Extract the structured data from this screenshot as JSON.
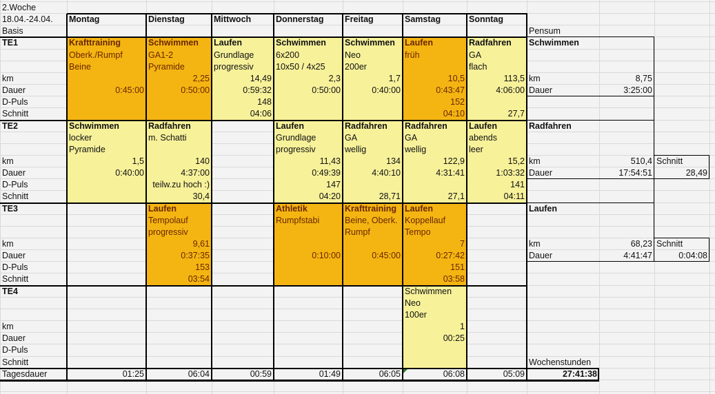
{
  "sheet": {
    "week": "2.Woche",
    "date_range": "18.04.-24.04.",
    "phase": "Basis",
    "days": [
      "Montag",
      "Dienstag",
      "Mittwoch",
      "Donnerstag",
      "Freitag",
      "Samstag",
      "Sonntag"
    ],
    "row_labels": [
      "km",
      "Dauer",
      "D-Puls",
      "Schnitt"
    ],
    "colors": {
      "intense": "#f4b512",
      "easy": "#f7f19a",
      "intense_text": "#6a2600"
    },
    "blocks": [
      {
        "label": "TE1",
        "sessions": [
          {
            "day": 0,
            "type": "intense",
            "sport": "Krafttraining",
            "l1": "Oberk./Rumpf",
            "l2": "Beine",
            "km": "",
            "dauer": "0:45:00",
            "puls": "",
            "schnitt": ""
          },
          {
            "day": 1,
            "type": "intense",
            "sport": "Schwimmen",
            "l1": "GA1-2",
            "l2": "Pyramide",
            "km": "2,25",
            "dauer": "0:50:00",
            "puls": "",
            "schnitt": ""
          },
          {
            "day": 2,
            "type": "easy",
            "sport": "Laufen",
            "l1": "Grundlage",
            "l2": "progressiv",
            "km": "14,49",
            "dauer": "0:59:32",
            "puls": "148",
            "schnitt": "04:06"
          },
          {
            "day": 3,
            "type": "easy",
            "sport": "Schwimmen",
            "l1": "6x200",
            "l2": "10x50 / 4x25",
            "km": "2,3",
            "dauer": "0:50:00",
            "puls": "",
            "schnitt": ""
          },
          {
            "day": 4,
            "type": "easy",
            "sport": "Schwimmen",
            "l1": "Neo",
            "l2": "200er",
            "km": "1,7",
            "dauer": "0:40:00",
            "puls": "",
            "schnitt": ""
          },
          {
            "day": 5,
            "type": "intense",
            "sport": "Laufen",
            "l1": "früh",
            "l2": "",
            "km": "10,5",
            "dauer": "0:43:47",
            "puls": "152",
            "schnitt": "04:10"
          },
          {
            "day": 6,
            "type": "easy",
            "sport": "Radfahren",
            "l1": "GA",
            "l2": "flach",
            "km": "113,5",
            "dauer": "4:06:00",
            "puls": "",
            "schnitt": "27,7"
          }
        ]
      },
      {
        "label": "TE2",
        "sessions": [
          {
            "day": 0,
            "type": "easy",
            "sport": "Schwimmen",
            "l1": "locker",
            "l2": "Pyramide",
            "km": "1,5",
            "dauer": "0:40:00",
            "puls": "",
            "schnitt": ""
          },
          {
            "day": 1,
            "type": "easy",
            "sport": "Radfahren",
            "l1": "m. Schatti",
            "l2": "",
            "km": "140",
            "dauer": "4:37:00",
            "puls": "teilw.zu hoch :)",
            "schnitt": "30,4"
          },
          {
            "day": 3,
            "type": "easy",
            "sport": "Laufen",
            "l1": "Grundlage",
            "l2": "progressiv",
            "km": "11,43",
            "dauer": "0:49:39",
            "puls": "147",
            "schnitt": "04:20"
          },
          {
            "day": 4,
            "type": "easy",
            "sport": "Radfahren",
            "l1": "GA",
            "l2": "wellig",
            "km": "134",
            "dauer": "4:40:10",
            "puls": "",
            "schnitt": "28,71"
          },
          {
            "day": 5,
            "type": "easy",
            "sport": "Radfahren",
            "l1": "GA",
            "l2": "wellig",
            "km": "122,9",
            "dauer": "4:31:41",
            "puls": "",
            "schnitt": "27,1"
          },
          {
            "day": 6,
            "type": "easy",
            "sport": "Laufen",
            "l1": "abends",
            "l2": "leer",
            "km": "15,2",
            "dauer": "1:03:32",
            "puls": "141",
            "schnitt": "04:11"
          }
        ]
      },
      {
        "label": "TE3",
        "sessions": [
          {
            "day": 1,
            "type": "intense",
            "sport": "Laufen",
            "l1": "Tempolauf",
            "l2": "progressiv",
            "km": "9,61",
            "dauer": "0:37:35",
            "puls": "153",
            "schnitt": "03:54"
          },
          {
            "day": 3,
            "type": "intense",
            "sport": "Athletik",
            "l1": "Rumpfstabi",
            "l2": "",
            "km": "",
            "dauer": "0:10:00",
            "puls": "",
            "schnitt": ""
          },
          {
            "day": 4,
            "type": "intense",
            "sport": "Krafttraining",
            "l1": "Beine, Oberk.",
            "l2": "Rumpf",
            "km": "",
            "dauer": "0:45:00",
            "puls": "",
            "schnitt": ""
          },
          {
            "day": 5,
            "type": "intense",
            "sport": "Laufen",
            "l1": "Koppellauf",
            "l2": "Tempo",
            "km": "7",
            "dauer": "0:27:42",
            "puls": "151",
            "schnitt": "03:58"
          }
        ]
      },
      {
        "label": "TE4",
        "sessions": [
          {
            "day": 5,
            "type": "easy",
            "plain": true,
            "sport": "Schwimmen",
            "l1": "Neo",
            "l2": "100er",
            "km": "1",
            "dauer": "00:25",
            "puls": "",
            "schnitt": ""
          }
        ]
      }
    ],
    "daily_total_label": "Tagesdauer",
    "daily_totals": [
      "01:25",
      "06:04",
      "00:59",
      "01:49",
      "06:05",
      "06:08",
      "05:09"
    ]
  },
  "pensum": {
    "title": "Pensum",
    "km_label": "km",
    "dauer_label": "Dauer",
    "schnitt_label": "Schnitt",
    "sports": [
      {
        "name": "Schwimmen",
        "km": "8,75",
        "dauer": "3:25:00",
        "schnitt": ""
      },
      {
        "name": "Radfahren",
        "km": "510,4",
        "dauer": "17:54:51",
        "schnitt": "28,49"
      },
      {
        "name": "Laufen",
        "km": "68,23",
        "dauer": "4:41:47",
        "schnitt": "0:04:08"
      }
    ],
    "week_hours_label": "Wochenstunden",
    "week_hours": "27:41:38"
  }
}
